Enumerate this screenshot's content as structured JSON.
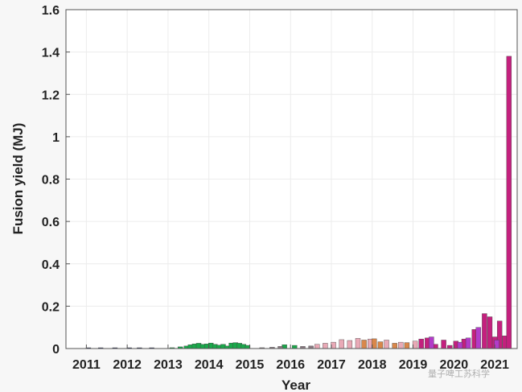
{
  "chart_data": {
    "type": "bar",
    "xlabel": "Year",
    "ylabel": "Fusion yield (MJ)",
    "ylim": [
      0,
      1.6
    ],
    "xlim": [
      2010.5,
      2021.55
    ],
    "yticks": [
      "0",
      "0.2",
      "0.4",
      "0.6",
      "0.8",
      "1",
      "1.2",
      "1.4",
      "1.6"
    ],
    "xticks": [
      "2011",
      "2012",
      "2013",
      "2014",
      "2015",
      "2016",
      "2017",
      "2018",
      "2019",
      "2020",
      "2021"
    ],
    "grid": true,
    "legend": "none",
    "watermark": "量子啤工苏科学",
    "series": [
      {
        "color": "#1f2a66",
        "points": [
          [
            2011.05,
            0.001
          ],
          [
            2011.35,
            0.002
          ],
          [
            2011.7,
            0.002
          ],
          [
            2012.05,
            0.002
          ],
          [
            2012.3,
            0.003
          ],
          [
            2012.6,
            0.002
          ]
        ]
      },
      {
        "color": "#19a84a",
        "points": [
          [
            2013.1,
            0.004
          ],
          [
            2013.3,
            0.008
          ],
          [
            2013.45,
            0.012
          ],
          [
            2013.55,
            0.018
          ],
          [
            2013.65,
            0.022
          ],
          [
            2013.75,
            0.025
          ],
          [
            2013.85,
            0.02
          ],
          [
            2013.95,
            0.022
          ],
          [
            2014.05,
            0.026
          ],
          [
            2014.15,
            0.02
          ],
          [
            2014.25,
            0.016
          ],
          [
            2014.35,
            0.02
          ],
          [
            2014.45,
            0.012
          ],
          [
            2014.55,
            0.026
          ],
          [
            2014.65,
            0.028
          ],
          [
            2014.75,
            0.025
          ],
          [
            2014.85,
            0.02
          ],
          [
            2014.95,
            0.015
          ],
          [
            2015.85,
            0.018
          ],
          [
            2016.1,
            0.015
          ]
        ]
      },
      {
        "color": "#8a7a82",
        "points": [
          [
            2015.3,
            0.004
          ],
          [
            2015.55,
            0.006
          ],
          [
            2015.75,
            0.01
          ],
          [
            2016.3,
            0.01
          ],
          [
            2016.5,
            0.012
          ]
        ]
      },
      {
        "color": "#e9a9b6",
        "points": [
          [
            2016.65,
            0.02
          ],
          [
            2016.85,
            0.025
          ],
          [
            2017.05,
            0.03
          ],
          [
            2017.25,
            0.042
          ],
          [
            2017.45,
            0.038
          ],
          [
            2017.65,
            0.048
          ],
          [
            2017.95,
            0.045
          ],
          [
            2018.35,
            0.04
          ],
          [
            2018.7,
            0.03
          ],
          [
            2019.05,
            0.035
          ]
        ]
      },
      {
        "color": "#d9874a",
        "points": [
          [
            2017.8,
            0.04
          ],
          [
            2018.05,
            0.046
          ],
          [
            2018.2,
            0.032
          ],
          [
            2018.55,
            0.025
          ],
          [
            2018.85,
            0.028
          ]
        ]
      },
      {
        "color": "#c4207e",
        "points": [
          [
            2019.2,
            0.045
          ],
          [
            2019.35,
            0.05
          ],
          [
            2019.55,
            0.02
          ],
          [
            2019.75,
            0.04
          ],
          [
            2019.9,
            0.015
          ],
          [
            2020.05,
            0.035
          ],
          [
            2020.25,
            0.045
          ],
          [
            2020.5,
            0.09
          ],
          [
            2020.75,
            0.165
          ],
          [
            2020.88,
            0.15
          ],
          [
            2021.0,
            0.055
          ],
          [
            2021.12,
            0.13
          ],
          [
            2021.25,
            0.06
          ],
          [
            2021.35,
            1.38
          ]
        ]
      },
      {
        "color": "#b23cc9",
        "points": [
          [
            2019.45,
            0.055
          ],
          [
            2020.15,
            0.03
          ],
          [
            2020.35,
            0.05
          ],
          [
            2020.6,
            0.1
          ],
          [
            2021.05,
            0.04
          ]
        ]
      }
    ]
  }
}
